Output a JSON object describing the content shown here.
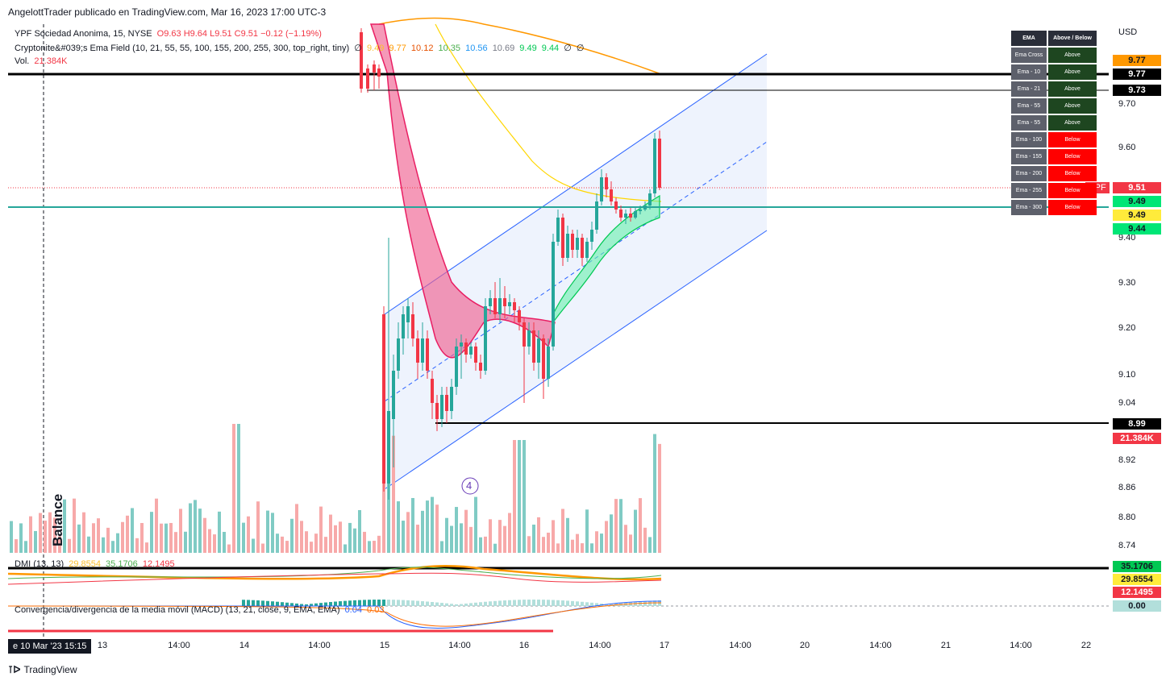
{
  "header": {
    "publisher": "AngelottTrader publicado en TradingView.com, Mar 16, 2023 17:00 UTC-3"
  },
  "legend": {
    "symbol": "YPF Sociedad Anonima, 15, NYSE",
    "ohlc": "O9.63  H9.64  L9.51  C9.51  −0.12 (−1.19%)",
    "indicator": "Cryptonite&#039;s Ema Field (10, 21, 55, 55, 100, 155, 200, 255, 300, top_right, tiny)",
    "indicator_values": [
      "∅",
      "9.49",
      "9.77",
      "10.12",
      "10.35",
      "10.56",
      "10.69",
      "9.49",
      "9.44",
      "∅",
      "∅"
    ],
    "vol_label": "Vol.",
    "vol_value": "21.384K",
    "dmi": "DMI (13, 13)",
    "dmi_values": [
      "29.8554",
      "35.1706",
      "12.1495"
    ],
    "macd": "Convergencia/divergencia de la media móvil (MACD) (13, 21, close, 9, EMA, EMA)",
    "macd_values": [
      "0.04",
      "0.03"
    ]
  },
  "currency": "USD",
  "price_ticks": [
    "9.70",
    "9.60",
    "9.40",
    "9.30",
    "9.20",
    "9.10",
    "9.04",
    "8.92",
    "8.86",
    "8.80",
    "8.74"
  ],
  "price_tags": [
    {
      "label": "9.77",
      "bg": "#ff9800",
      "color": "#131722"
    },
    {
      "label": "9.77",
      "bg": "#000000",
      "color": "#ffffff"
    },
    {
      "label": "9.73",
      "bg": "#000000",
      "color": "#ffffff"
    },
    {
      "label": "9.51",
      "bg": "#f23645",
      "color": "#ffffff"
    },
    {
      "label": "9.49",
      "bg": "#00e676",
      "color": "#131722"
    },
    {
      "label": "9.49",
      "bg": "#ffeb3b",
      "color": "#131722"
    },
    {
      "label": "9.44",
      "bg": "#00e676",
      "color": "#131722"
    },
    {
      "label": "8.99",
      "bg": "#000000",
      "color": "#ffffff"
    },
    {
      "label": "21.384K",
      "bg": "#f23645",
      "color": "#ffffff"
    },
    {
      "label": "35.1706",
      "bg": "#00c853",
      "color": "#131722"
    },
    {
      "label": "29.8554",
      "bg": "#ffeb3b",
      "color": "#131722"
    },
    {
      "label": "12.1495",
      "bg": "#f23645",
      "color": "#ffffff"
    },
    {
      "label": "0.00",
      "bg": "#b2dfdb",
      "color": "#131722"
    }
  ],
  "ypf_badge": "YPF",
  "ema_table": {
    "headers": [
      "EMA",
      "Above / Below"
    ],
    "rows": [
      [
        "Ema Cross",
        "Above"
      ],
      [
        "Ema - 10",
        "Above"
      ],
      [
        "Ema - 21",
        "Above"
      ],
      [
        "Ema - 55",
        "Above"
      ],
      [
        "Ema - 55",
        "Above"
      ],
      [
        "Ema - 100",
        "Below"
      ],
      [
        "Ema - 155",
        "Below"
      ],
      [
        "Ema - 200",
        "Below"
      ],
      [
        "Ema - 255",
        "Below"
      ],
      [
        "Ema - 300",
        "Below"
      ]
    ]
  },
  "time_axis": {
    "badge": "e 10 Mar '23   15:15",
    "ticks": [
      "13",
      "14:00",
      "14",
      "14:00",
      "15",
      "14:00",
      "16",
      "14:00",
      "17",
      "14:00",
      "20",
      "14:00",
      "21",
      "14:00",
      "22"
    ]
  },
  "annotations": {
    "wave_label": "4",
    "balance_label": "Balance"
  },
  "footer": "TradingView",
  "colors": {
    "up": "#26a69a",
    "down": "#f23645",
    "channel": "#2962ff",
    "ema_band_bear": "#f06292",
    "ema_band_bull": "#69f0ae",
    "ema_yellow": "#ffd600",
    "ema_orange": "#ff9800"
  },
  "chart_data": {
    "type": "candlestick",
    "symbol": "YPF",
    "interval": "15",
    "ohlc": {
      "open": 9.63,
      "high": 9.64,
      "low": 9.51,
      "close": 9.51
    },
    "horizontal_levels": [
      9.77,
      9.73,
      9.49,
      8.99
    ],
    "price_range": [
      8.72,
      9.82
    ],
    "last_volume": "21.384K",
    "dmi": {
      "plus": 35.1706,
      "adx": 29.8554,
      "minus": 12.1495
    },
    "macd": {
      "macd": 0.04,
      "signal": 0.03
    }
  }
}
